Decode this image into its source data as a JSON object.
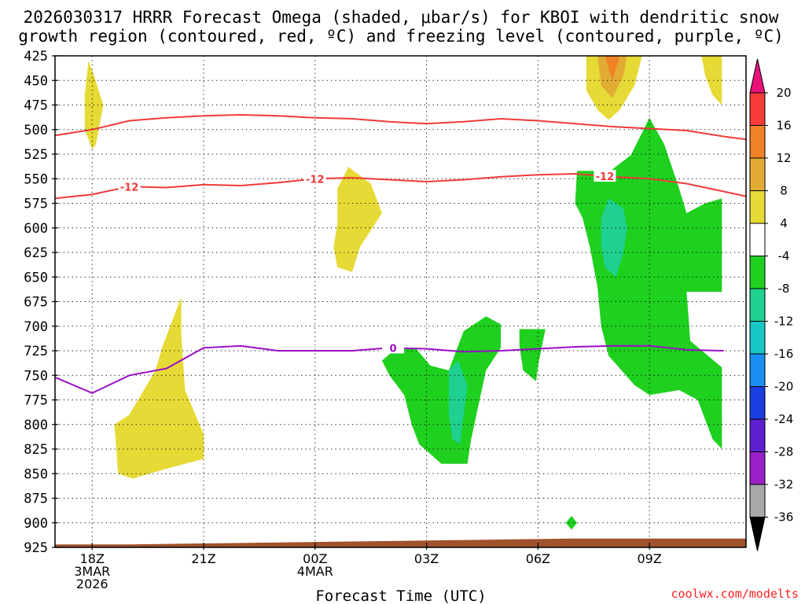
{
  "chart_data": {
    "type": "heatmap",
    "title_line1": "2026030317 HRRR Forecast Omega (shaded, μbar/s) for KBOI with dendritic snow",
    "title_line2": "growth region (contoured, red, ºC) and freezing level (contoured, purple, ºC)",
    "xlabel": "Forecast Time (UTC)",
    "credit": "coolwx.com/modelts",
    "x_range_hours": [
      -1,
      17.6
    ],
    "y_range_hpa": [
      425,
      925
    ],
    "y_ticks": [
      "425",
      "450",
      "475",
      "500",
      "525",
      "550",
      "575",
      "600",
      "625",
      "650",
      "675",
      "700",
      "725",
      "750",
      "775",
      "800",
      "825",
      "850",
      "875",
      "900",
      "925"
    ],
    "x_ticks": [
      {
        "hour": 0,
        "label": "18Z",
        "sub1": "3MAR",
        "sub2": "2026"
      },
      {
        "hour": 3,
        "label": "21Z",
        "sub1": "",
        "sub2": ""
      },
      {
        "hour": 6,
        "label": "00Z",
        "sub1": "4MAR",
        "sub2": ""
      },
      {
        "hour": 9,
        "label": "03Z",
        "sub1": "",
        "sub2": ""
      },
      {
        "hour": 12,
        "label": "06Z",
        "sub1": "",
        "sub2": ""
      },
      {
        "hour": 15,
        "label": "09Z",
        "sub1": "",
        "sub2": ""
      }
    ],
    "colorbar": [
      {
        "label": "20",
        "color": "#f73a3a"
      },
      {
        "label": "16",
        "color": "#f08226"
      },
      {
        "label": "12",
        "color": "#e2ac34"
      },
      {
        "label": "8",
        "color": "#e6da36"
      },
      {
        "label": "4",
        "color": "#ffffff"
      },
      {
        "label": "-4",
        "color": "#1fd01f"
      },
      {
        "label": "-8",
        "color": "#1fd090"
      },
      {
        "label": "-12",
        "color": "#18c6c6"
      },
      {
        "label": "-16",
        "color": "#1a8ef0"
      },
      {
        "label": "-20",
        "color": "#1a3ee0"
      },
      {
        "label": "-24",
        "color": "#5c1fd0"
      },
      {
        "label": "-28",
        "color": "#9a1fc6"
      },
      {
        "label": "-32",
        "color": "#a8a8a8"
      },
      {
        "label": "-36",
        "color": ""
      }
    ],
    "colorbar_top_color": "#e8127a",
    "colorbar_bottom_color": "#000000",
    "terrain_color": "#a0522d",
    "shaded_regions": [
      {
        "name": "omega-pos-upper-left",
        "level": 4,
        "color": "#e6da36",
        "points": [
          [
            -0.1,
            430
          ],
          [
            0.05,
            445
          ],
          [
            0.3,
            475
          ],
          [
            0.1,
            515
          ],
          [
            0.0,
            520
          ],
          [
            -0.2,
            500
          ],
          [
            -0.2,
            465
          ],
          [
            -0.1,
            430
          ]
        ]
      },
      {
        "name": "omega-pos-lower-left",
        "level": 4,
        "color": "#e6da36",
        "points": [
          [
            1.0,
            790
          ],
          [
            0.6,
            800
          ],
          [
            0.7,
            850
          ],
          [
            1.1,
            855
          ],
          [
            2.0,
            845
          ],
          [
            3.0,
            835
          ],
          [
            3.0,
            810
          ],
          [
            2.5,
            765
          ],
          [
            2.4,
            710
          ],
          [
            2.4,
            670
          ],
          [
            1.9,
            720
          ],
          [
            1.7,
            745
          ],
          [
            1.0,
            790
          ]
        ]
      },
      {
        "name": "omega-pos-center",
        "level": 4,
        "color": "#e6da36",
        "points": [
          [
            6.6,
            560
          ],
          [
            6.9,
            538
          ],
          [
            7.5,
            555
          ],
          [
            7.8,
            585
          ],
          [
            7.2,
            620
          ],
          [
            7.0,
            645
          ],
          [
            6.6,
            640
          ],
          [
            6.5,
            620
          ],
          [
            6.6,
            595
          ],
          [
            6.6,
            560
          ]
        ]
      },
      {
        "name": "omega-pos-top-right",
        "level": 4,
        "color": "#e6da36",
        "points": [
          [
            13.3,
            425
          ],
          [
            14.8,
            425
          ],
          [
            14.6,
            455
          ],
          [
            14.2,
            480
          ],
          [
            13.9,
            490
          ],
          [
            13.6,
            480
          ],
          [
            13.3,
            460
          ],
          [
            13.3,
            425
          ]
        ]
      },
      {
        "name": "omega-pos-top-right-8",
        "level": 8,
        "color": "#e2ac34",
        "points": [
          [
            13.6,
            425
          ],
          [
            14.4,
            425
          ],
          [
            14.3,
            445
          ],
          [
            14.0,
            468
          ],
          [
            13.7,
            455
          ],
          [
            13.6,
            425
          ]
        ]
      },
      {
        "name": "omega-pos-top-right-12",
        "level": 12,
        "color": "#f08226",
        "points": [
          [
            13.8,
            425
          ],
          [
            14.2,
            425
          ],
          [
            14.0,
            450
          ],
          [
            13.8,
            425
          ]
        ]
      },
      {
        "name": "omega-pos-right-edge",
        "level": 4,
        "color": "#e6da36",
        "points": [
          [
            16.4,
            425
          ],
          [
            16.95,
            425
          ],
          [
            16.95,
            475
          ],
          [
            16.7,
            465
          ],
          [
            16.5,
            445
          ],
          [
            16.4,
            425
          ]
        ]
      },
      {
        "name": "omega-neg-center",
        "level": -4,
        "color": "#1fd01f",
        "points": [
          [
            8.7,
            722
          ],
          [
            9.1,
            740
          ],
          [
            9.6,
            745
          ],
          [
            10.0,
            705
          ],
          [
            10.6,
            690
          ],
          [
            11.0,
            698
          ],
          [
            11.0,
            722
          ],
          [
            10.6,
            745
          ],
          [
            10.4,
            780
          ],
          [
            10.2,
            815
          ],
          [
            10.1,
            840
          ],
          [
            9.4,
            840
          ],
          [
            8.8,
            820
          ],
          [
            8.6,
            800
          ],
          [
            8.4,
            770
          ],
          [
            8.0,
            750
          ],
          [
            7.8,
            735
          ],
          [
            8.2,
            722
          ],
          [
            8.7,
            722
          ]
        ]
      },
      {
        "name": "omega-neg-center-8",
        "level": -8,
        "color": "#1fd090",
        "points": [
          [
            9.6,
            745
          ],
          [
            9.85,
            735
          ],
          [
            10.1,
            760
          ],
          [
            10.0,
            790
          ],
          [
            9.9,
            820
          ],
          [
            9.7,
            815
          ],
          [
            9.6,
            790
          ],
          [
            9.6,
            745
          ]
        ]
      },
      {
        "name": "omega-neg-small-1",
        "level": -4,
        "color": "#1fd01f",
        "points": [
          [
            11.5,
            703
          ],
          [
            12.2,
            703
          ],
          [
            12.0,
            740
          ],
          [
            11.95,
            756
          ],
          [
            11.6,
            745
          ],
          [
            11.5,
            720
          ],
          [
            11.5,
            703
          ]
        ]
      },
      {
        "name": "omega-neg-small-2",
        "level": -4,
        "color": "#1fd01f",
        "points": [
          [
            12.9,
            893
          ],
          [
            13.05,
            900
          ],
          [
            12.9,
            907
          ],
          [
            12.75,
            900
          ],
          [
            12.9,
            893
          ]
        ]
      },
      {
        "name": "omega-neg-right",
        "level": -4,
        "color": "#1fd01f",
        "points": [
          [
            15.0,
            488
          ],
          [
            15.4,
            515
          ],
          [
            15.8,
            560
          ],
          [
            16.0,
            585
          ],
          [
            16.5,
            575
          ],
          [
            16.95,
            570
          ],
          [
            16.95,
            665
          ],
          [
            16.0,
            665
          ],
          [
            16.1,
            715
          ],
          [
            16.95,
            742
          ],
          [
            16.95,
            825
          ],
          [
            16.7,
            815
          ],
          [
            16.3,
            775
          ],
          [
            15.8,
            765
          ],
          [
            15.0,
            770
          ],
          [
            14.6,
            760
          ],
          [
            13.9,
            730
          ],
          [
            13.7,
            700
          ],
          [
            13.6,
            660
          ],
          [
            13.4,
            620
          ],
          [
            13.2,
            590
          ],
          [
            13.0,
            575
          ],
          [
            13.05,
            542
          ],
          [
            13.95,
            542
          ],
          [
            14.5,
            526
          ],
          [
            15.0,
            488
          ]
        ]
      },
      {
        "name": "omega-neg-right-8",
        "level": -8,
        "color": "#1fd090",
        "points": [
          [
            13.9,
            570
          ],
          [
            14.3,
            580
          ],
          [
            14.4,
            600
          ],
          [
            14.3,
            625
          ],
          [
            14.1,
            650
          ],
          [
            13.8,
            640
          ],
          [
            13.7,
            620
          ],
          [
            13.7,
            590
          ],
          [
            13.9,
            570
          ]
        ]
      }
    ],
    "contours": [
      {
        "name": "dgz-top-contour",
        "color": "#f03a3a",
        "label": "",
        "points": [
          [
            -1,
            506
          ],
          [
            0,
            500
          ],
          [
            1,
            491
          ],
          [
            2,
            488
          ],
          [
            3,
            486
          ],
          [
            4,
            485
          ],
          [
            5,
            486
          ],
          [
            6,
            488
          ],
          [
            7,
            489
          ],
          [
            8,
            492
          ],
          [
            9,
            494
          ],
          [
            10,
            492
          ],
          [
            11,
            489
          ],
          [
            12,
            491
          ],
          [
            13,
            494
          ],
          [
            14,
            497
          ],
          [
            15,
            499
          ],
          [
            16,
            501
          ],
          [
            17,
            507
          ],
          [
            17.6,
            510
          ]
        ]
      },
      {
        "name": "dgz-minus12-contour",
        "color": "#f03a3a",
        "label": "-12",
        "label_hours": [
          1,
          6,
          13.8
        ],
        "points": [
          [
            -1,
            570
          ],
          [
            0,
            566
          ],
          [
            1,
            558
          ],
          [
            2,
            559
          ],
          [
            3,
            556
          ],
          [
            4,
            557
          ],
          [
            5,
            554
          ],
          [
            6,
            550
          ],
          [
            7,
            549
          ],
          [
            8,
            551
          ],
          [
            9,
            553
          ],
          [
            10,
            551
          ],
          [
            11,
            548
          ],
          [
            12,
            546
          ],
          [
            13,
            545
          ],
          [
            14,
            548
          ],
          [
            15,
            550
          ],
          [
            16,
            555
          ],
          [
            17,
            563
          ],
          [
            17.6,
            568
          ]
        ]
      },
      {
        "name": "freezing-level-contour",
        "color": "#9a0fc6",
        "label": "0",
        "label_hours": [
          8.1
        ],
        "points": [
          [
            -1,
            752
          ],
          [
            0,
            768
          ],
          [
            1,
            750
          ],
          [
            2,
            743
          ],
          [
            3,
            722
          ],
          [
            4,
            720
          ],
          [
            5,
            725
          ],
          [
            6,
            725
          ],
          [
            7,
            725
          ],
          [
            8,
            722
          ],
          [
            9,
            723
          ],
          [
            10,
            726
          ],
          [
            11,
            725
          ],
          [
            12,
            723
          ],
          [
            13,
            721
          ],
          [
            14,
            720
          ],
          [
            15,
            720
          ],
          [
            16,
            724
          ],
          [
            17,
            725
          ]
        ]
      }
    ],
    "terrain_top": [
      [
        -1,
        922
      ],
      [
        1,
        922
      ],
      [
        3,
        921
      ],
      [
        5,
        920
      ],
      [
        7,
        919
      ],
      [
        9,
        918
      ],
      [
        11,
        917
      ],
      [
        13,
        916
      ],
      [
        15,
        916
      ],
      [
        17,
        916
      ],
      [
        17.6,
        916
      ]
    ]
  }
}
